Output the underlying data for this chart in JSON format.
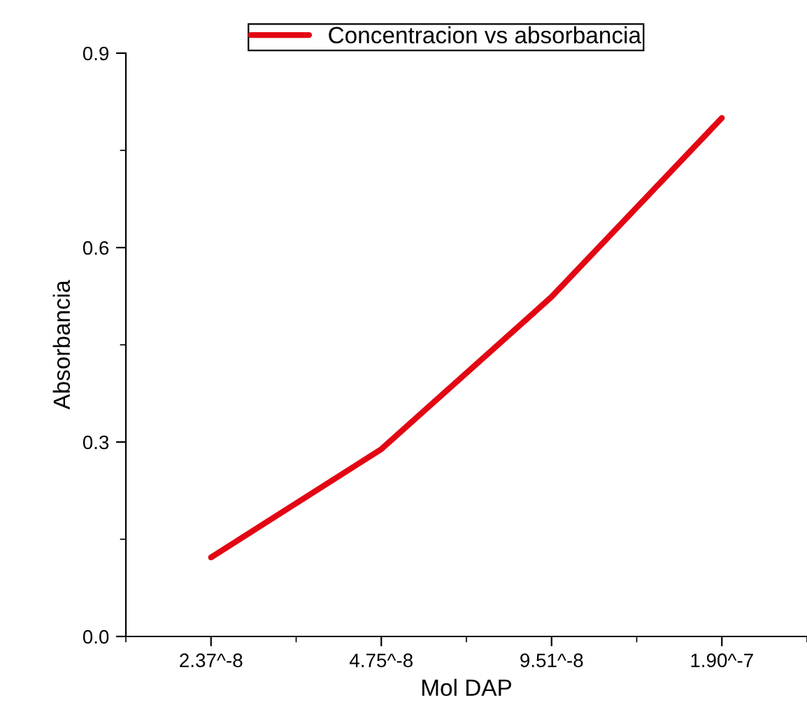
{
  "chart_data": {
    "type": "line",
    "xlabel": "Mol DAP",
    "ylabel": "Absorbancia",
    "categories": [
      "2.37^-8",
      "4.75^-8",
      "9.51^-8",
      "1.90^-7"
    ],
    "series": [
      {
        "name": "Concentracion vs absorbancia",
        "color": "#e30613",
        "values": [
          0.122,
          0.289,
          0.524,
          0.8
        ]
      }
    ],
    "ylim": [
      0,
      0.9
    ],
    "yticks": [
      {
        "value": 0,
        "label": "0.0"
      },
      0.3,
      0.6,
      0.9
    ],
    "legend": "top",
    "grid": false,
    "marker": "none",
    "line_style": "solid"
  }
}
